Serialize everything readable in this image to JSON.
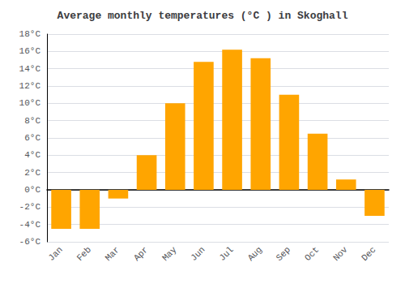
{
  "chart_data": {
    "type": "bar",
    "title": "Average monthly temperatures (°C ) in Skoghall",
    "categories": [
      "Jan",
      "Feb",
      "Mar",
      "Apr",
      "May",
      "Jun",
      "Jul",
      "Aug",
      "Sep",
      "Oct",
      "Nov",
      "Dec"
    ],
    "values": [
      -4.5,
      -4.5,
      -1.0,
      4.0,
      10.0,
      14.8,
      16.2,
      15.2,
      11.0,
      6.5,
      1.2,
      -3.0
    ],
    "color": "#FFA500",
    "ylim": [
      -6,
      18
    ],
    "yticks": [
      {
        "value": -6,
        "label": "-6°C"
      },
      {
        "value": -4,
        "label": "-4°C"
      },
      {
        "value": -2,
        "label": "-2°C"
      },
      {
        "value": 0,
        "label": "0°C"
      },
      {
        "value": 2,
        "label": "2°C"
      },
      {
        "value": 4,
        "label": "4°C"
      },
      {
        "value": 6,
        "label": "6°C"
      },
      {
        "value": 8,
        "label": "8°C"
      },
      {
        "value": 10,
        "label": "10°C"
      },
      {
        "value": 12,
        "label": "12°C"
      },
      {
        "value": 14,
        "label": "14°C"
      },
      {
        "value": 16,
        "label": "16°C"
      },
      {
        "value": 18,
        "label": "18°C"
      }
    ],
    "grid": true
  }
}
